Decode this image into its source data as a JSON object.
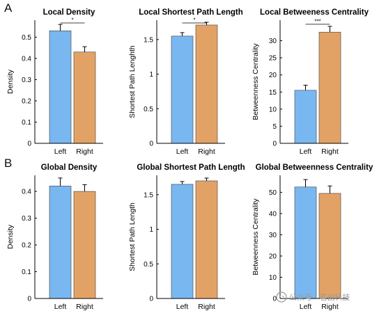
{
  "panels": {
    "a": "A",
    "b": "B"
  },
  "colors": {
    "left": "#79b7f0",
    "right": "#e3a265",
    "axis": "#000000"
  },
  "watermark": {
    "text": "公众号 · 茗创科技"
  },
  "chart_data": [
    {
      "type": "bar",
      "title": "Local Density",
      "ylabel": "Density",
      "categories": [
        "Left",
        "Right"
      ],
      "values": [
        0.53,
        0.43
      ],
      "errors": [
        0.03,
        0.025
      ],
      "ylim": [
        0,
        0.58
      ],
      "yticks": [
        0,
        0.1,
        0.2,
        0.3,
        0.4,
        0.5
      ],
      "ytick_labels": [
        "0",
        "0.1",
        "0.2",
        "0.3",
        "0.4",
        "0.5"
      ],
      "significance": "*"
    },
    {
      "type": "bar",
      "title": "Local Shortest Path Length",
      "ylabel": "Shortest Path Lenghth",
      "categories": [
        "Left",
        "Right"
      ],
      "values": [
        1.55,
        1.71
      ],
      "errors": [
        0.05,
        0.04
      ],
      "ylim": [
        0,
        1.78
      ],
      "yticks": [
        0,
        0.5,
        1,
        1.5
      ],
      "ytick_labels": [
        "0",
        "0.5",
        "1",
        "1.5"
      ],
      "significance": "*"
    },
    {
      "type": "bar",
      "title": "Local Betweeness Centrality",
      "ylabel": "Betweenness Centrality",
      "categories": [
        "Left",
        "Right"
      ],
      "values": [
        15.5,
        32.5
      ],
      "errors": [
        1.5,
        1.7
      ],
      "ylim": [
        0,
        36
      ],
      "yticks": [
        0,
        5,
        10,
        15,
        20,
        25,
        30
      ],
      "ytick_labels": [
        "0",
        "5",
        "10",
        "15",
        "20",
        "25",
        "30"
      ],
      "significance": "***"
    },
    {
      "type": "bar",
      "title": "Global Density",
      "ylabel": "Density",
      "categories": [
        "Left",
        "Right"
      ],
      "values": [
        0.42,
        0.4
      ],
      "errors": [
        0.03,
        0.025
      ],
      "ylim": [
        0,
        0.46
      ],
      "yticks": [
        0,
        0.1,
        0.2,
        0.3,
        0.4
      ],
      "ytick_labels": [
        "0",
        "0.1",
        "0.2",
        "0.3",
        "0.4"
      ],
      "significance": ""
    },
    {
      "type": "bar",
      "title": "Global Shortest Path Length",
      "ylabel": "Shortest Path Length",
      "categories": [
        "Left",
        "Right"
      ],
      "values": [
        1.65,
        1.7
      ],
      "errors": [
        0.04,
        0.04
      ],
      "ylim": [
        0,
        1.78
      ],
      "yticks": [
        0,
        0.5,
        1,
        1.5
      ],
      "ytick_labels": [
        "0",
        "0.5",
        "1",
        "1.5"
      ],
      "significance": ""
    },
    {
      "type": "bar",
      "title": "Global Betweenness Centrality",
      "ylabel": "Betweenness Centrality",
      "categories": [
        "Left",
        "Right"
      ],
      "values": [
        52.5,
        49.5
      ],
      "errors": [
        3.5,
        3.5
      ],
      "ylim": [
        0,
        58
      ],
      "yticks": [
        0,
        10,
        20,
        30,
        40,
        50
      ],
      "ytick_labels": [
        "0",
        "10",
        "20",
        "30",
        "40",
        "50"
      ],
      "significance": ""
    }
  ]
}
